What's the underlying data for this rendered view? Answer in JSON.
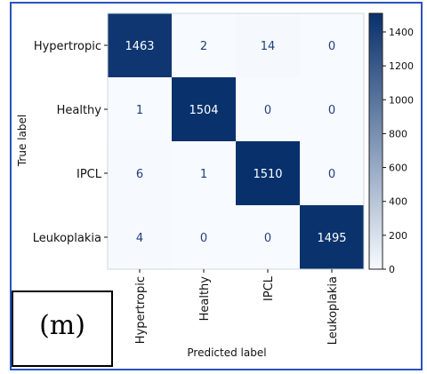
{
  "panel_label": "(m)",
  "chart_data": {
    "type": "heatmap",
    "title": "",
    "xlabel": "Predicted label",
    "ylabel": "True label",
    "x_categories": [
      "Hypertropic",
      "Healthy",
      "IPCL",
      "Leukoplakia"
    ],
    "y_categories": [
      "Hypertropic",
      "Healthy",
      "IPCL",
      "Leukoplakia"
    ],
    "matrix": [
      [
        1463,
        2,
        14,
        0
      ],
      [
        1,
        1504,
        0,
        0
      ],
      [
        6,
        1,
        1510,
        0
      ],
      [
        4,
        0,
        0,
        1495
      ]
    ],
    "colorbar": {
      "min": 0,
      "max": 1510,
      "ticks": [
        0,
        200,
        400,
        600,
        800,
        1000,
        1200,
        1400
      ]
    },
    "colormap": [
      "#f7fbff",
      "#08306b"
    ],
    "text_threshold": 755,
    "text_colors": {
      "light": "#ffffff",
      "dark": "#1f3f7a"
    },
    "frame_color": "#2a52be"
  }
}
